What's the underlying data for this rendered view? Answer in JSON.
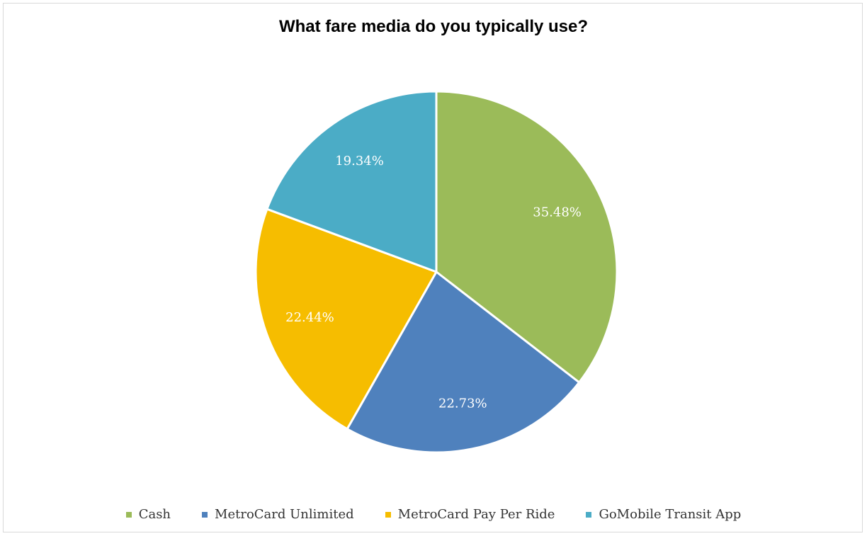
{
  "chart_data": {
    "type": "pie",
    "title": "What fare media do you typically use?",
    "categories": [
      "Cash",
      "MetroCard Unlimited",
      "MetroCard Pay Per Ride",
      "GoMobile Transit App"
    ],
    "values": [
      35.48,
      22.73,
      22.44,
      19.34
    ],
    "labels": [
      "35.48%",
      "22.73%",
      "22.44%",
      "19.34%"
    ],
    "colors": [
      "#9bbb59",
      "#4f81bd",
      "#f6bd00",
      "#4bacc6"
    ],
    "legend": "bottom",
    "start": "12 o'clock",
    "direction": "clockwise"
  }
}
